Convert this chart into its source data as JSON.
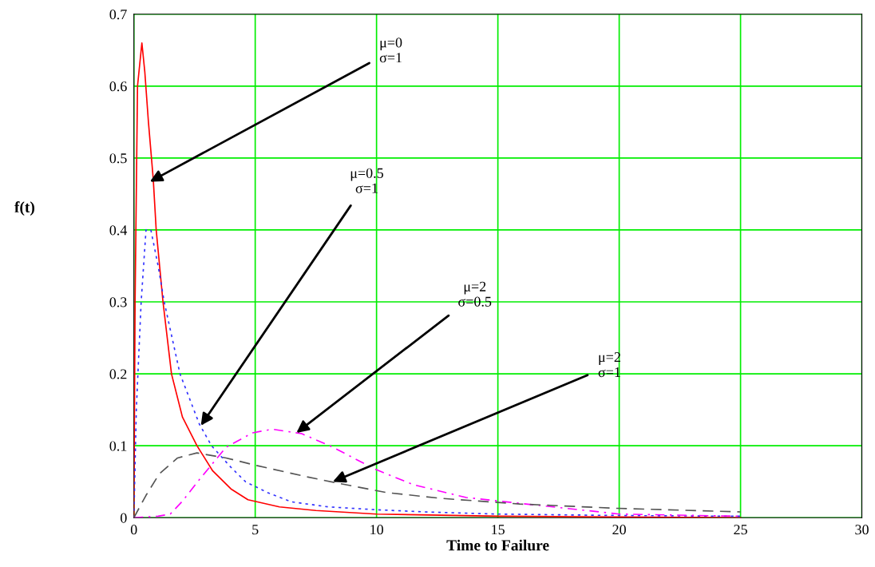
{
  "chart_data": {
    "type": "line",
    "xlabel": "Time to Failure",
    "ylabel": "f(t)",
    "xlim": [
      0,
      30
    ],
    "ylim": [
      0,
      0.7
    ],
    "xticks": [
      0,
      5,
      10,
      15,
      20,
      25,
      30
    ],
    "yticks": [
      0,
      0.1,
      0.2,
      0.3,
      0.4,
      0.5,
      0.6,
      0.7
    ],
    "grid": true,
    "legend": false,
    "series": [
      {
        "color": "#ff0000",
        "line_style": "solid",
        "x": [
          0,
          0.05,
          0.15,
          0.33,
          0.45,
          0.6,
          0.8,
          0.92,
          1.2,
          1.55,
          2,
          2.6,
          3.25,
          4,
          4.7,
          6,
          7.5,
          10,
          15,
          20,
          25
        ],
        "values": [
          0,
          0.3,
          0.6,
          0.66,
          0.62,
          0.55,
          0.47,
          0.4,
          0.3,
          0.2,
          0.14,
          0.1,
          0.065,
          0.04,
          0.025,
          0.015,
          0.01,
          0.005,
          0.002,
          0.001,
          0
        ]
      },
      {
        "color": "#3333ff",
        "line_style": "dotted",
        "x": [
          0,
          0.1,
          0.3,
          0.5,
          0.7,
          1,
          1.25,
          1.9,
          2.7,
          3.2,
          4,
          4.6,
          5.5,
          6.5,
          8,
          10,
          12,
          15,
          20,
          25
        ],
        "values": [
          0,
          0.15,
          0.3,
          0.4,
          0.4,
          0.35,
          0.3,
          0.2,
          0.13,
          0.1,
          0.07,
          0.05,
          0.035,
          0.022,
          0.015,
          0.011,
          0.008,
          0.005,
          0.003,
          0.002
        ]
      },
      {
        "color": "#ff00ff",
        "line_style": "dashdot",
        "x": [
          0,
          1,
          1.5,
          2,
          2.7,
          3.8,
          4.9,
          5.7,
          6.9,
          8.2,
          9.9,
          11.5,
          13.7,
          15.9,
          20,
          25
        ],
        "values": [
          0,
          0.002,
          0.005,
          0.023,
          0.053,
          0.098,
          0.118,
          0.123,
          0.117,
          0.098,
          0.068,
          0.046,
          0.028,
          0.02,
          0.005,
          0.002
        ]
      },
      {
        "color": "#555555",
        "line_style": "dashed",
        "x": [
          0,
          0.5,
          1.05,
          1.8,
          2.6,
          3.8,
          5,
          7.1,
          8.4,
          10.4,
          12.6,
          15.9,
          19.9,
          25
        ],
        "values": [
          0,
          0.031,
          0.061,
          0.083,
          0.09,
          0.083,
          0.073,
          0.057,
          0.048,
          0.035,
          0.027,
          0.019,
          0.013,
          0.008
        ]
      }
    ],
    "annotations": [
      {
        "text": "μ=0\nσ=1",
        "x": 0.66,
        "y": 0.467
      },
      {
        "text": "μ=0.5\nσ=1",
        "x": 2.76,
        "y": 0.128
      },
      {
        "text": "μ=2\nσ=0.5",
        "x": 6.7,
        "y": 0.118
      },
      {
        "text": "μ=2\nσ=1",
        "x": 8.2,
        "y": 0.05
      }
    ]
  }
}
